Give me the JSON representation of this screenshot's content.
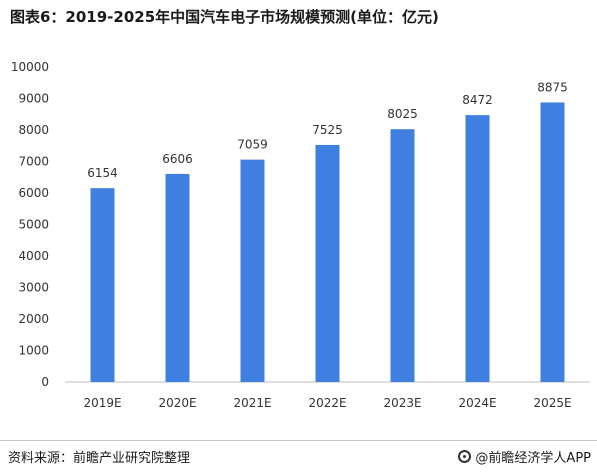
{
  "title": "图表6：2019-2025年中国汽车电子市场规模预测(单位：亿元)",
  "footer": {
    "source": "资料来源：前瞻产业研究院整理",
    "brand": "@前瞻经济学人APP"
  },
  "colors": {
    "bar": "#3f7fe0",
    "axis": "#bfbfbf"
  },
  "chart_data": {
    "type": "bar",
    "title": "图表6：2019-2025年中国汽车电子市场规模预测(单位：亿元)",
    "categories": [
      "2019E",
      "2020E",
      "2021E",
      "2022E",
      "2023E",
      "2024E",
      "2025E"
    ],
    "values": [
      6154,
      6606,
      7059,
      7525,
      8025,
      8472,
      8875
    ],
    "ylim": [
      0,
      10000
    ],
    "yticks": [
      0,
      1000,
      2000,
      3000,
      4000,
      5000,
      6000,
      7000,
      8000,
      9000,
      10000
    ],
    "xlabel": "",
    "ylabel": "",
    "grid": false,
    "data_labels": true
  }
}
